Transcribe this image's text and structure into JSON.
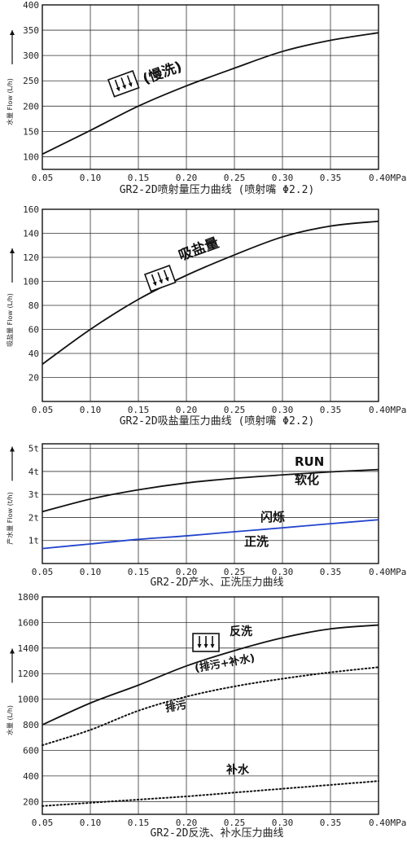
{
  "chart_data": [
    {
      "type": "line",
      "title": "GR2-2D喷射量压力曲线 (喷射嘴 Φ2.2)",
      "ylabel": "水量 Flow (L/h)",
      "xlabel": "",
      "x_ticks": [
        "0.05",
        "0.10",
        "0.15",
        "0.20",
        "0.25",
        "0.30",
        "0.35",
        "0.40MPa"
      ],
      "y_ticks": [
        "100",
        "150",
        "200",
        "250",
        "300",
        "350",
        "400"
      ],
      "xlim": [
        0.05,
        0.4
      ],
      "ylim": [
        75,
        400
      ],
      "grid": true,
      "series": [
        {
          "name": "(慢洗)",
          "color": "#111111",
          "style": "solid",
          "x": [
            0.05,
            0.1,
            0.15,
            0.2,
            0.25,
            0.3,
            0.35,
            0.4
          ],
          "values": [
            105,
            152,
            200,
            240,
            275,
            308,
            330,
            345
          ]
        }
      ],
      "annotations": [
        {
          "text": "(慢洗)",
          "icon": "valve-icon"
        }
      ]
    },
    {
      "type": "line",
      "title": "GR2-2D吸盐量压力曲线 (喷射嘴 Φ2.2)",
      "ylabel": "吸盐量 Flow (L/h)",
      "xlabel": "",
      "x_ticks": [
        "0.05",
        "0.10",
        "0.15",
        "0.20",
        "0.25",
        "0.30",
        "0.35",
        "0.40MPa"
      ],
      "y_ticks": [
        "20",
        "40",
        "60",
        "80",
        "100",
        "120",
        "140",
        "160"
      ],
      "xlim": [
        0.05,
        0.4
      ],
      "ylim": [
        0,
        160
      ],
      "grid": true,
      "series": [
        {
          "name": "吸盐量",
          "color": "#111111",
          "style": "solid",
          "x": [
            0.05,
            0.1,
            0.15,
            0.2,
            0.25,
            0.3,
            0.35,
            0.4
          ],
          "values": [
            31,
            60,
            85,
            105,
            122,
            137,
            146,
            150
          ]
        }
      ],
      "annotations": [
        {
          "text": "吸盐量",
          "icon": "valve-icon"
        }
      ]
    },
    {
      "type": "line",
      "title": "GR2-2D产水、正洗压力曲线",
      "ylabel": "产水量 Flow (t/h)",
      "xlabel": "",
      "x_ticks": [
        "0.05",
        "0.10",
        "0.15",
        "0.20",
        "0.25",
        "0.30",
        "0.35",
        "0.40MPa"
      ],
      "y_ticks": [
        "1t",
        "2t",
        "3t",
        "4t",
        "5t"
      ],
      "xlim": [
        0.05,
        0.4
      ],
      "ylim": [
        0,
        5.2
      ],
      "grid": true,
      "series": [
        {
          "name": "RUN 软化",
          "color": "#111111",
          "style": "solid",
          "x": [
            0.05,
            0.1,
            0.15,
            0.2,
            0.25,
            0.3,
            0.35,
            0.4
          ],
          "values": [
            2.25,
            2.8,
            3.2,
            3.5,
            3.7,
            3.85,
            3.98,
            4.08
          ]
        },
        {
          "name": "正洗",
          "color": "#2244cc",
          "style": "solid",
          "x": [
            0.05,
            0.1,
            0.15,
            0.2,
            0.25,
            0.3,
            0.35,
            0.4
          ],
          "values": [
            0.65,
            0.85,
            1.05,
            1.2,
            1.38,
            1.55,
            1.73,
            1.9
          ]
        }
      ],
      "annotations": [
        {
          "text": "RUN",
          "color": "#111111"
        },
        {
          "text": "软化",
          "color": "#111111"
        },
        {
          "text": "闪烁",
          "color": "#dd2222"
        },
        {
          "text": "正洗",
          "color": "#2244cc"
        }
      ]
    },
    {
      "type": "line",
      "title": "GR2-2D反洗、补水压力曲线",
      "ylabel": "水量 (L/h)",
      "xlabel": "",
      "x_ticks": [
        "0.05",
        "0.10",
        "0.15",
        "0.20",
        "0.25",
        "0.30",
        "0.35",
        "0.40MPa"
      ],
      "y_ticks": [
        "200",
        "400",
        "600",
        "800",
        "1000",
        "1200",
        "1400",
        "1600",
        "1800"
      ],
      "xlim": [
        0.05,
        0.4
      ],
      "ylim": [
        100,
        1800
      ],
      "grid": true,
      "series": [
        {
          "name": "反洗 (排污+补水)",
          "color": "#111111",
          "style": "solid",
          "x": [
            0.05,
            0.1,
            0.15,
            0.2,
            0.25,
            0.3,
            0.35,
            0.4
          ],
          "values": [
            800,
            970,
            1110,
            1260,
            1380,
            1480,
            1550,
            1580
          ]
        },
        {
          "name": "排污",
          "color": "#111111",
          "style": "dotted",
          "x": [
            0.05,
            0.1,
            0.15,
            0.2,
            0.25,
            0.3,
            0.35,
            0.4
          ],
          "values": [
            640,
            760,
            910,
            1020,
            1100,
            1160,
            1210,
            1250
          ]
        },
        {
          "name": "补水",
          "color": "#111111",
          "style": "dotted",
          "x": [
            0.05,
            0.1,
            0.15,
            0.2,
            0.25,
            0.3,
            0.35,
            0.4
          ],
          "values": [
            165,
            190,
            215,
            240,
            270,
            300,
            330,
            360
          ]
        }
      ],
      "annotations": [
        {
          "text": "反洗",
          "icon": "valve-icon"
        },
        {
          "text": "(排污+补水)"
        },
        {
          "text": "排污"
        },
        {
          "text": "补水"
        }
      ]
    }
  ]
}
